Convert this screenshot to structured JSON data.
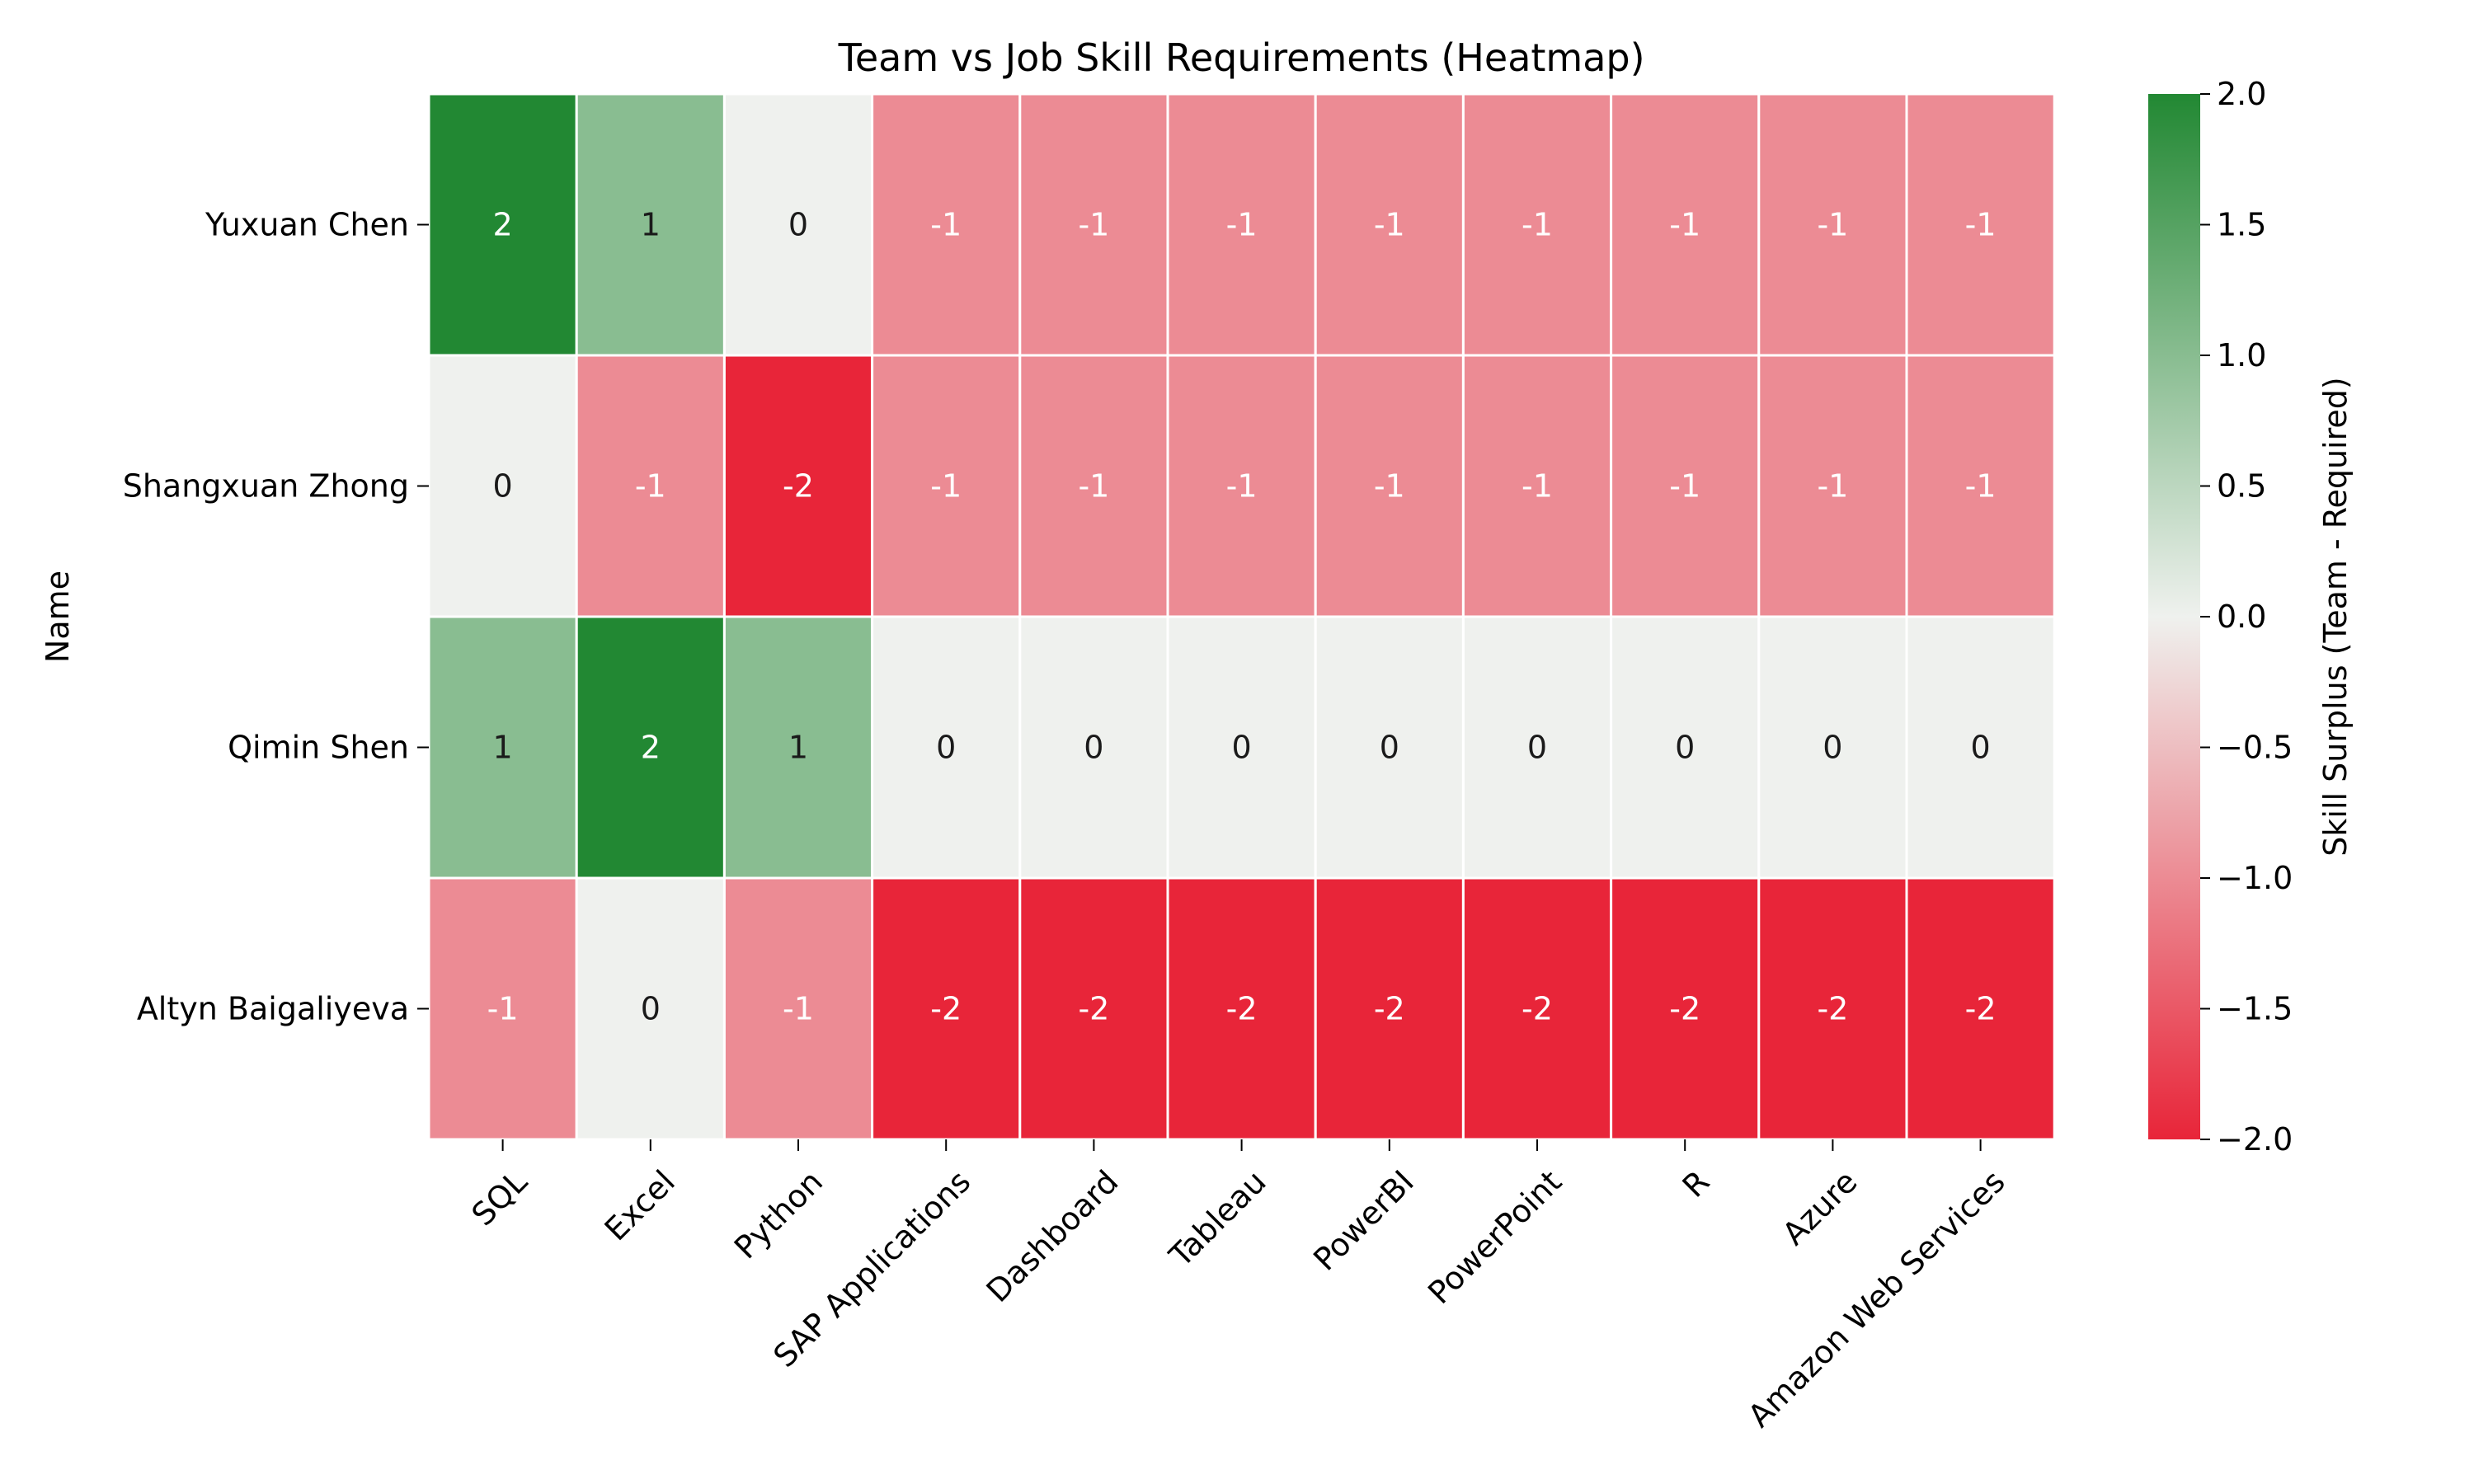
{
  "chart_data": {
    "type": "heatmap",
    "title": "Team vs Job Skill Requirements (Heatmap)",
    "xlabel": "",
    "ylabel": "Name",
    "x_categories": [
      "SQL",
      "Excel",
      "Python",
      "SAP Applications",
      "Dashboard",
      "Tableau",
      "PowerBI",
      "PowerPoint",
      "R",
      "Azure",
      "Amazon Web Services"
    ],
    "y_categories": [
      "Yuxuan Chen",
      "Shangxuan Zhong",
      "Qimin Shen",
      "Altyn Baigaliyeva"
    ],
    "values": [
      [
        2,
        1,
        0,
        -1,
        -1,
        -1,
        -1,
        -1,
        -1,
        -1,
        -1
      ],
      [
        0,
        -1,
        -2,
        -1,
        -1,
        -1,
        -1,
        -1,
        -1,
        -1,
        -1
      ],
      [
        1,
        2,
        1,
        0,
        0,
        0,
        0,
        0,
        0,
        0,
        0
      ],
      [
        -1,
        0,
        -1,
        -2,
        -2,
        -2,
        -2,
        -2,
        -2,
        -2,
        -2
      ]
    ],
    "annotations": true,
    "colorbar": {
      "label": "Skill Surplus (Team - Required)",
      "range": [
        -2.0,
        2.0
      ],
      "ticks": [
        2.0,
        1.5,
        1.0,
        0.5,
        0.0,
        -0.5,
        -1.0,
        -1.5,
        -2.0
      ],
      "tick_labels": [
        "2.0",
        "1.5",
        "1.0",
        "0.5",
        "0.0",
        "−0.5",
        "−1.0",
        "−1.5",
        "−2.0"
      ],
      "colors": {
        "negative": "#e82539",
        "neutral": "#eff1ee",
        "positive": "#228833"
      }
    },
    "grid": false
  }
}
